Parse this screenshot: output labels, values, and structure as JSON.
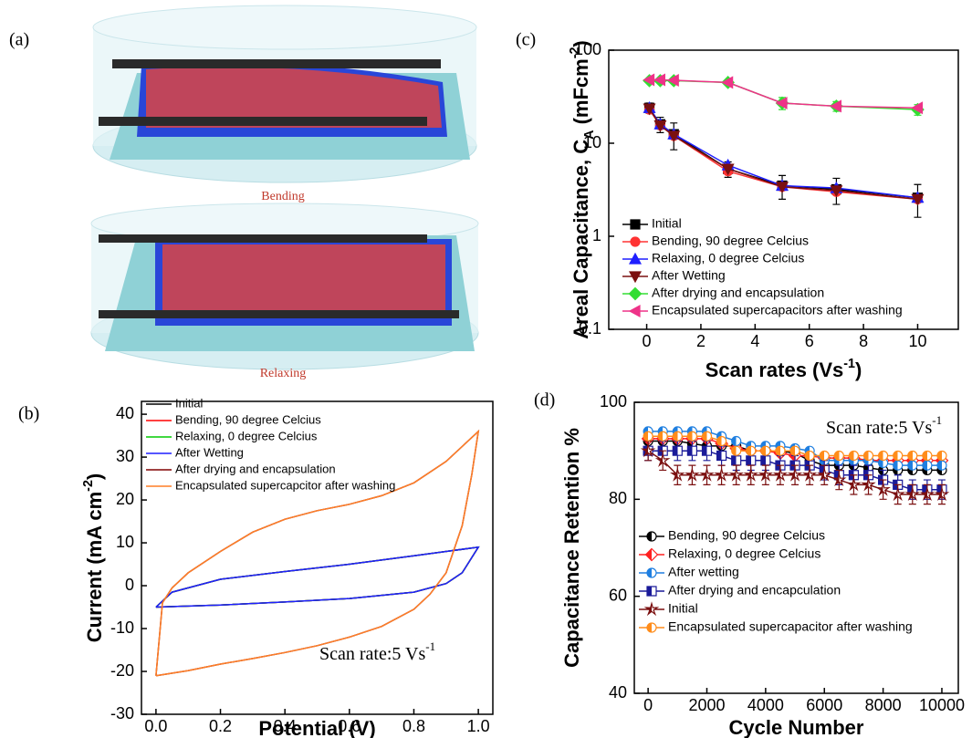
{
  "illustration": {
    "label": "(a)",
    "top_caption": "Bending",
    "bottom_caption": "Relaxing"
  },
  "chart_data": [
    {
      "type": "line",
      "label": "(b)",
      "xlabel": {
        "text": "Potential (V)"
      },
      "ylabel": {
        "text": "Current (mA cm",
        "sup": "-2",
        "tail": ")"
      },
      "annotation": {
        "text": "Scan rate:5 Vs",
        "sup": "-1"
      },
      "xlim": [
        -0.045,
        1.045
      ],
      "ylim": [
        -30,
        43
      ],
      "xticks": [
        {
          "value": 0,
          "label": "0.0"
        },
        0.2,
        0.4,
        0.6,
        0.8,
        {
          "value": 1,
          "label": "1.0"
        }
      ],
      "yticks": [
        -30,
        -20,
        -10,
        0,
        10,
        20,
        30,
        40
      ],
      "legend": "upper left",
      "series": [
        {
          "name": "Initial",
          "color": "#000000",
          "x": [
            0,
            0.2,
            0.4,
            0.6,
            0.8,
            0.9,
            0.95,
            1.0,
            0.9,
            0.8,
            0.6,
            0.4,
            0.2,
            0.05,
            0.0
          ],
          "values": [
            -5,
            -4.5,
            -3.8,
            -3,
            -1.5,
            0.5,
            3,
            9,
            8,
            7,
            5,
            3.3,
            1.5,
            -1.5,
            -5
          ]
        },
        {
          "name": "Bending, 90 degree Celcius",
          "color": "#ff0000",
          "x": [
            0,
            0.2,
            0.4,
            0.6,
            0.8,
            0.9,
            0.95,
            1.0,
            0.9,
            0.8,
            0.6,
            0.4,
            0.2,
            0.05,
            0.0
          ],
          "values": [
            -5,
            -4.5,
            -3.8,
            -3,
            -1.5,
            0.5,
            3,
            9,
            8,
            7,
            5,
            3.3,
            1.5,
            -1.5,
            -5
          ]
        },
        {
          "name": "Relaxing, 0 degree Celcius",
          "color": "#00cc00",
          "x": [
            0,
            0.2,
            0.4,
            0.6,
            0.8,
            0.9,
            0.95,
            1.0,
            0.9,
            0.8,
            0.6,
            0.4,
            0.2,
            0.05,
            0.0
          ],
          "values": [
            -5,
            -4.5,
            -3.8,
            -3,
            -1.5,
            0.5,
            3,
            9,
            8,
            7,
            5,
            3.3,
            1.5,
            -1.5,
            -5
          ]
        },
        {
          "name": "After   Wetting",
          "color": "#1f1fff",
          "x": [
            0,
            0.2,
            0.4,
            0.6,
            0.8,
            0.9,
            0.95,
            1.0,
            0.9,
            0.8,
            0.6,
            0.4,
            0.2,
            0.05,
            0.0
          ],
          "values": [
            -5,
            -4.5,
            -3.8,
            -3,
            -1.5,
            0.5,
            3,
            9,
            8,
            7,
            5,
            3.3,
            1.5,
            -1.5,
            -5
          ]
        },
        {
          "name": "After drying and encapsulation",
          "color": "#800000",
          "x": [
            0,
            0.1,
            0.2,
            0.3,
            0.4,
            0.5,
            0.6,
            0.7,
            0.8,
            0.85,
            0.9,
            0.95,
            0.98,
            1.0,
            0.9,
            0.8,
            0.7,
            0.6,
            0.5,
            0.4,
            0.3,
            0.2,
            0.1,
            0.05,
            0.02,
            0.0
          ],
          "values": [
            -21,
            -19.8,
            -18.3,
            -17,
            -15.6,
            -14,
            -12,
            -9.5,
            -5.5,
            -2,
            3,
            14,
            26,
            36,
            29,
            24,
            21,
            19,
            17.5,
            15.5,
            12.5,
            8,
            3,
            -0.5,
            -4,
            -21
          ]
        },
        {
          "name": "Encapsulated supercapcitor after washing",
          "color": "#ff7f27",
          "x": [
            0,
            0.1,
            0.2,
            0.3,
            0.4,
            0.5,
            0.6,
            0.7,
            0.8,
            0.85,
            0.9,
            0.95,
            0.98,
            1.0,
            0.9,
            0.8,
            0.7,
            0.6,
            0.5,
            0.4,
            0.3,
            0.2,
            0.1,
            0.05,
            0.02,
            0.0
          ],
          "values": [
            -21,
            -19.8,
            -18.3,
            -17,
            -15.6,
            -14,
            -12,
            -9.5,
            -5.5,
            -2,
            3,
            14,
            26,
            36,
            29,
            24,
            21,
            19,
            17.5,
            15.5,
            12.5,
            8,
            3,
            -0.5,
            -4,
            -21
          ]
        }
      ]
    },
    {
      "type": "line",
      "label": "(c)",
      "xlabel": {
        "text": "Scan rates (Vs",
        "sup": "-1",
        "tail": ")"
      },
      "ylabel": {
        "text": "Areal Capacitance, C",
        "sub": "A",
        "text2": " (mFcm",
        "sup": "-2",
        "tail": ")"
      },
      "xlim": [
        -1.4,
        11.5
      ],
      "ylim": [
        0.1,
        100
      ],
      "log_y": true,
      "xticks": [
        0,
        2,
        4,
        6,
        8,
        10
      ],
      "yticks": [
        0.1,
        1,
        10,
        100
      ],
      "legend": "lower left",
      "x": [
        0.1,
        0.5,
        1,
        3,
        5,
        7,
        10
      ],
      "series": [
        {
          "name": "Initial",
          "color": "#000000",
          "marker": "square",
          "values": [
            24,
            16,
            12.5,
            5.3,
            3.5,
            3.2,
            2.6
          ],
          "errors": [
            3,
            3,
            4,
            1,
            1,
            1,
            1
          ]
        },
        {
          "name": "Bending, 90 degree Celcius",
          "color": "#ff3333",
          "marker": "circle",
          "values": [
            23,
            15.5,
            12,
            5,
            3.4,
            3.0,
            2.5
          ]
        },
        {
          "name": "Relaxing, 0 degree Celcius",
          "color": "#1f1fff",
          "marker": "up",
          "values": [
            24,
            16,
            12.5,
            5.8,
            3.5,
            3.3,
            2.6
          ]
        },
        {
          "name": "After   Wetting",
          "color": "#7b1010",
          "marker": "down",
          "values": [
            23.5,
            15.5,
            12,
            5.3,
            3.4,
            3.1,
            2.5
          ]
        },
        {
          "name": "After drying and encapsulation",
          "color": "#33dd33",
          "marker": "diamond",
          "values": [
            47,
            47,
            47,
            45,
            27,
            25,
            23
          ],
          "errors": [
            2,
            2,
            2,
            2,
            4,
            3,
            3
          ]
        },
        {
          "name": "Encapsulated supercapacitors after washing",
          "color": "#ee3388",
          "marker": "left",
          "values": [
            48,
            48,
            47.5,
            45,
            27,
            25,
            24
          ]
        }
      ]
    },
    {
      "type": "line",
      "label": "(d)",
      "xlabel": {
        "text": "Cycle Number"
      },
      "ylabel": {
        "text": "Capacitance Retention %"
      },
      "annotation": {
        "text": "Scan rate:5 Vs",
        "sup": "-1"
      },
      "xlim": [
        -470,
        10560
      ],
      "ylim": [
        40,
        100
      ],
      "half_filled": true,
      "xticks": [
        0,
        2000,
        4000,
        6000,
        8000,
        10000
      ],
      "yticks": [
        40,
        60,
        80,
        100
      ],
      "legend": "center left",
      "x": [
        0,
        500,
        1000,
        1500,
        2000,
        2500,
        3000,
        3500,
        4000,
        4500,
        5000,
        5500,
        6000,
        6500,
        7000,
        7500,
        8000,
        8500,
        9000,
        9500,
        10000
      ],
      "series": [
        {
          "name": "Bending, 90 degree Celcius",
          "color": "#000000",
          "marker": "circle",
          "values": [
            92,
            92,
            92,
            91.5,
            91,
            91,
            91,
            90,
            90,
            90,
            89.5,
            88,
            87,
            87,
            87,
            86.5,
            86,
            86,
            86,
            86,
            86
          ]
        },
        {
          "name": "Relaxing, 0 degree Celcius",
          "color": "#ff2020",
          "marker": "diamond",
          "values": [
            92.5,
            92.5,
            92.5,
            92.5,
            92.5,
            91.5,
            90.5,
            90,
            90,
            89.5,
            89,
            89,
            88.5,
            88.5,
            88.5,
            88,
            88,
            88,
            88,
            88,
            88
          ]
        },
        {
          "name": "After wetting",
          "color": "#1f7fe0",
          "marker": "circle",
          "values": [
            94,
            94,
            94,
            94,
            94,
            93,
            92,
            91,
            91,
            91,
            90.5,
            90,
            88,
            88,
            88,
            88,
            87.5,
            87,
            87,
            87,
            87
          ]
        },
        {
          "name": "After drying and encapculation",
          "color": "#1a1a99",
          "marker": "square",
          "values": [
            90,
            90,
            90,
            90,
            90,
            89,
            88,
            88,
            88,
            87,
            87,
            87,
            86,
            85,
            85,
            85,
            84,
            83,
            82,
            82,
            82
          ],
          "errors": [
            2,
            2,
            2,
            2,
            2,
            2,
            2,
            2,
            2,
            2,
            2,
            2,
            2,
            2,
            2,
            2,
            2,
            2,
            2,
            2,
            2
          ]
        },
        {
          "name": "Initial",
          "color": "#7b1010",
          "marker": "star",
          "values": [
            90,
            88,
            85,
            85,
            85,
            85,
            85,
            85,
            85,
            85,
            85,
            85,
            85,
            84,
            83,
            83,
            82,
            81,
            81,
            81,
            81
          ],
          "errors": [
            2,
            2,
            2,
            2,
            2,
            2,
            2,
            2,
            2,
            2,
            2,
            2,
            2,
            2,
            2,
            2,
            2,
            2,
            2,
            2,
            2
          ]
        },
        {
          "name": "Encapsulated supercapacitor after washing",
          "color": "#ff8c1a",
          "marker": "circle",
          "values": [
            93,
            93,
            93,
            93,
            93,
            92,
            90,
            90,
            90,
            90,
            90,
            89,
            89,
            89,
            89,
            89,
            89,
            89,
            89,
            89,
            89
          ]
        }
      ]
    }
  ]
}
